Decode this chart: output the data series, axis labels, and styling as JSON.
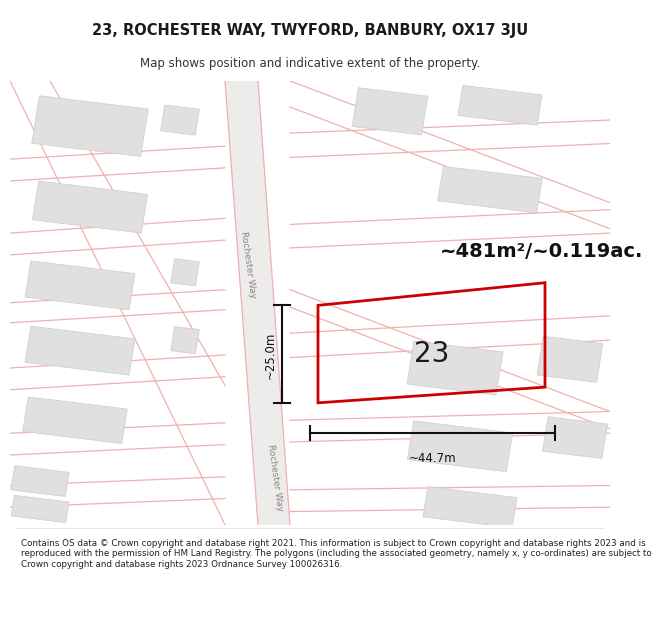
{
  "title": "23, ROCHESTER WAY, TWYFORD, BANBURY, OX17 3JU",
  "subtitle": "Map shows position and indicative extent of the property.",
  "area_label": "~481m²/~0.119ac.",
  "plot_number": "23",
  "width_label": "~44.7m",
  "height_label": "~25.0m",
  "copyright_text": "Contains OS data © Crown copyright and database right 2021. This information is subject to Crown copyright and database rights 2023 and is reproduced with the permission of HM Land Registry. The polygons (including the associated geometry, namely x, y co-ordinates) are subject to Crown copyright and database rights 2023 Ordnance Survey 100026316.",
  "map_bg": "#f8f8f8",
  "building_color": "#e0e0e0",
  "building_edge": "#cccccc",
  "plot_edge": "#cc0000",
  "road_label1": "Rochester Way",
  "road_label2": "Rochester Way",
  "road_line_color": "#f0b0b0",
  "road_fill_color": "#eeeeee"
}
